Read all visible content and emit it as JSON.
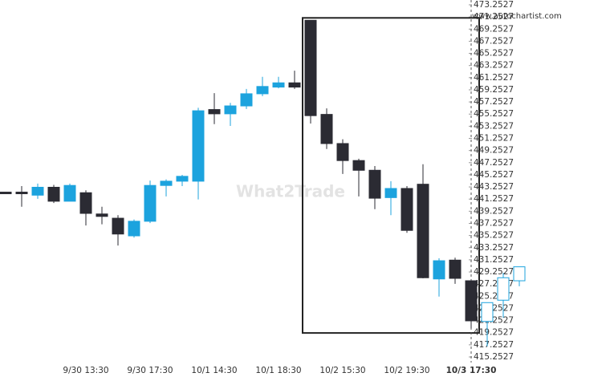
{
  "chart_data": {
    "type": "candlestick",
    "watermark": "What2Trade",
    "source": "www.autochartist.com",
    "categories": [
      null,
      null,
      null,
      null,
      null,
      "9/30 13:30",
      null,
      null,
      null,
      "9/30 17:30",
      null,
      null,
      null,
      "10/1 14:30",
      null,
      null,
      null,
      "10/1 18:30",
      null,
      null,
      null,
      "10/2 15:30",
      null,
      null,
      null,
      "10/2 19:30",
      null,
      null,
      null,
      "10/3 17:30",
      null,
      null,
      null
    ],
    "candles": [
      {
        "open": 442.4,
        "high": 442.4,
        "low": 442.3,
        "close": 442.3
      },
      {
        "open": 442.4,
        "high": 443.4,
        "low": 440.0,
        "close": 442.2
      },
      {
        "open": 441.9,
        "high": 443.8,
        "low": 441.3,
        "close": 443.2
      },
      {
        "open": 443.2,
        "high": 443.6,
        "low": 440.6,
        "close": 440.9
      },
      {
        "open": 440.9,
        "high": 443.8,
        "low": 440.9,
        "close": 443.5
      },
      {
        "open": 442.3,
        "high": 442.7,
        "low": 436.9,
        "close": 438.9
      },
      {
        "open": 438.8,
        "high": 440.0,
        "low": 437.1,
        "close": 438.4
      },
      {
        "open": 438.1,
        "high": 438.6,
        "low": 433.6,
        "close": 435.5
      },
      {
        "open": 435.2,
        "high": 437.9,
        "low": 434.9,
        "close": 437.6
      },
      {
        "open": 437.6,
        "high": 444.3,
        "low": 437.3,
        "close": 443.5
      },
      {
        "open": 443.5,
        "high": 444.5,
        "low": 441.7,
        "close": 444.2
      },
      {
        "open": 444.2,
        "high": 445.25,
        "low": 443.4,
        "close": 445.0
      },
      {
        "open": 444.2,
        "high": 456.3,
        "low": 441.2,
        "close": 455.8
      },
      {
        "open": 456.0,
        "high": 458.7,
        "low": 453.6,
        "close": 455.3
      },
      {
        "open": 455.3,
        "high": 457.1,
        "low": 453.3,
        "close": 456.6
      },
      {
        "open": 456.6,
        "high": 459.4,
        "low": 456.1,
        "close": 458.6
      },
      {
        "open": 458.6,
        "high": 461.4,
        "low": 458.2,
        "close": 459.8
      },
      {
        "open": 459.7,
        "high": 461.4,
        "low": 459.5,
        "close": 460.4
      },
      {
        "open": 460.4,
        "high": 462.4,
        "low": 459.4,
        "close": 459.7
      },
      {
        "open": 470.7,
        "high": 470.7,
        "low": 453.7,
        "close": 455.0
      },
      {
        "open": 455.2,
        "high": 456.2,
        "low": 449.5,
        "close": 450.4
      },
      {
        "open": 450.4,
        "high": 451.1,
        "low": 445.4,
        "close": 447.6
      },
      {
        "open": 447.6,
        "high": 447.9,
        "low": 441.7,
        "close": 446.0
      },
      {
        "open": 446.0,
        "high": 446.7,
        "low": 439.6,
        "close": 441.4
      },
      {
        "open": 441.5,
        "high": 444.2,
        "low": 438.6,
        "close": 443.0
      },
      {
        "open": 443.0,
        "high": 443.4,
        "low": 435.7,
        "close": 436.1
      },
      {
        "open": 443.7,
        "high": 447.0,
        "low": 428.2,
        "close": 428.3
      },
      {
        "open": 428.1,
        "high": 431.5,
        "low": 425.2,
        "close": 431.1
      },
      {
        "open": 431.2,
        "high": 431.6,
        "low": 427.3,
        "close": 428.2
      },
      {
        "open": 427.8,
        "high": 427.8,
        "low": 420.0,
        "close": 421.2
      },
      {
        "open": 421.1,
        "high": 424.2,
        "low": 417.0,
        "close": 424.2
      },
      {
        "open": 424.6,
        "high": 429.1,
        "low": 421.7,
        "close": 428.3
      },
      {
        "open": 427.8,
        "high": 430.1,
        "low": 426.9,
        "close": 430.1
      }
    ],
    "up_color": "#1ca3de",
    "down_color": "#2b2b33",
    "hollow_from": 30,
    "pattern_box": {
      "start": 19,
      "end": 29,
      "top": 471.1,
      "bottom": 419.2
    },
    "marker_index": 29,
    "ylim": [
      415.2527,
      473.2527
    ],
    "yticks": [
      415.2527,
      417.2527,
      419.2527,
      421.2527,
      423.2527,
      425.2527,
      427.2527,
      429.2527,
      431.2527,
      433.2527,
      435.2527,
      437.2527,
      439.2527,
      441.2527,
      443.2527,
      445.2527,
      447.2527,
      449.2527,
      451.2527,
      453.2527,
      455.2527,
      457.2527,
      459.2527,
      461.2527,
      463.2527,
      465.2527,
      467.2527,
      469.2527,
      471.2527,
      473.2527
    ]
  }
}
